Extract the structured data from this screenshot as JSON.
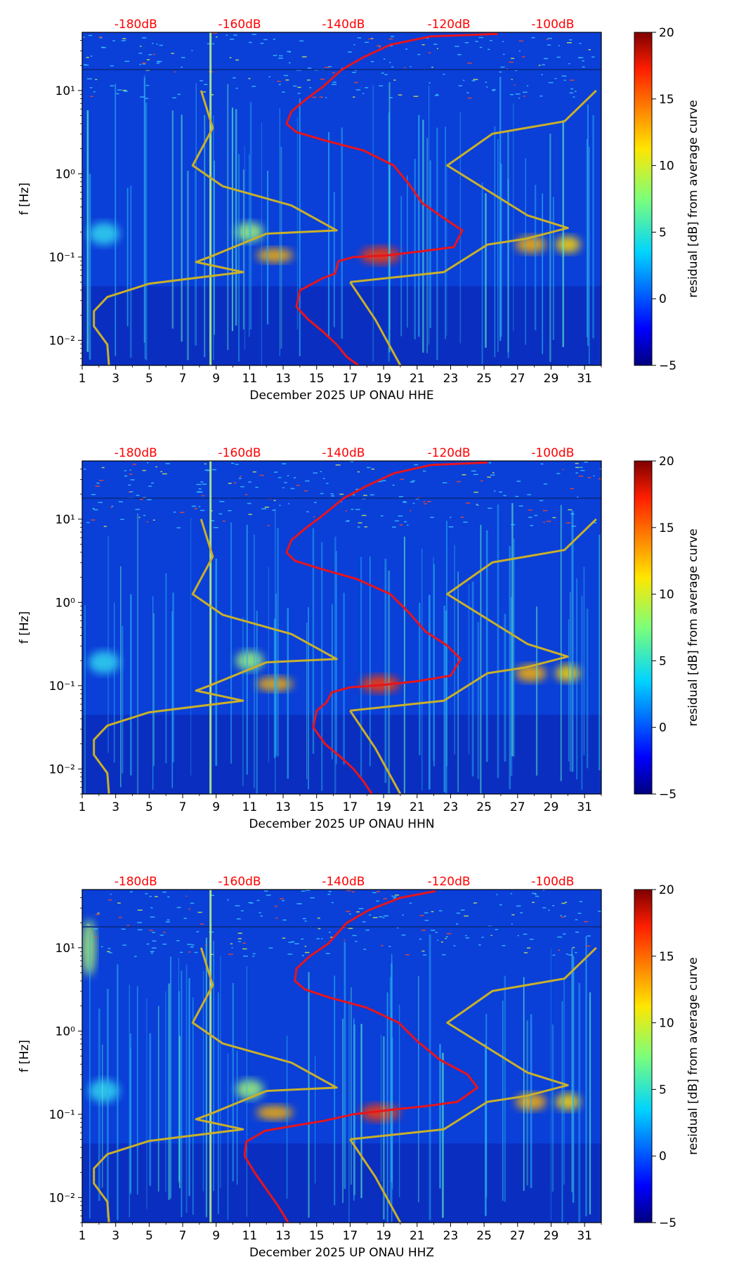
{
  "colors": {
    "psd_curve": "#e8141c",
    "model_curve": "#c9b02a",
    "db_labels": "#ff0000",
    "axis": "#000000"
  },
  "colorbar": {
    "label": "residual [dB] from average curve",
    "range": [
      -5,
      20
    ],
    "ticks": [
      "20",
      "15",
      "10",
      "5",
      "0",
      "−5"
    ],
    "colormap": "jet"
  },
  "chart_data": [
    {
      "type": "heatmap",
      "channel": "HHE",
      "xlabel": "December 2025 UP ONAU  HHE",
      "ylabel": "f [Hz]",
      "xlim": [
        1,
        32
      ],
      "ylim_hz": [
        0.005,
        50
      ],
      "x_tick_labels": [
        "1",
        "3",
        "5",
        "7",
        "9",
        "11",
        "13",
        "15",
        "17",
        "19",
        "21",
        "23",
        "25",
        "27",
        "29",
        "31"
      ],
      "y_tick_labels": [
        "10⁻²",
        "10⁻¹",
        "10⁰",
        "10¹"
      ],
      "db_scale_labels": [
        "-180dB",
        "-160dB",
        "-140dB",
        "-120dB",
        "-100dB"
      ],
      "db_scale_positions_day": [
        4.2,
        10.4,
        16.6,
        22.9,
        29.1
      ]
    },
    {
      "type": "heatmap",
      "channel": "HHN",
      "xlabel": "December 2025 UP ONAU  HHN",
      "ylabel": "f [Hz]",
      "xlim": [
        1,
        32
      ],
      "ylim_hz": [
        0.005,
        50
      ],
      "x_tick_labels": [
        "1",
        "3",
        "5",
        "7",
        "9",
        "11",
        "13",
        "15",
        "17",
        "19",
        "21",
        "23",
        "25",
        "27",
        "29",
        "31"
      ],
      "y_tick_labels": [
        "10⁻²",
        "10⁻¹",
        "10⁰",
        "10¹"
      ],
      "db_scale_labels": [
        "-180dB",
        "-160dB",
        "-140dB",
        "-120dB",
        "-100dB"
      ],
      "db_scale_positions_day": [
        4.2,
        10.4,
        16.6,
        22.9,
        29.1
      ]
    },
    {
      "type": "heatmap",
      "channel": "HHZ",
      "xlabel": "December 2025 UP ONAU  HHZ",
      "ylabel": "f [Hz]",
      "xlim": [
        1,
        32
      ],
      "ylim_hz": [
        0.005,
        50
      ],
      "x_tick_labels": [
        "1",
        "3",
        "5",
        "7",
        "9",
        "11",
        "13",
        "15",
        "17",
        "19",
        "21",
        "23",
        "25",
        "27",
        "29",
        "31"
      ],
      "y_tick_labels": [
        "10⁻²",
        "10⁻¹",
        "10⁰",
        "10¹"
      ],
      "db_scale_labels": [
        "-180dB",
        "-160dB",
        "-140dB",
        "-120dB",
        "-100dB"
      ],
      "db_scale_positions_day": [
        4.2,
        10.4,
        16.6,
        22.9,
        29.1
      ]
    }
  ]
}
